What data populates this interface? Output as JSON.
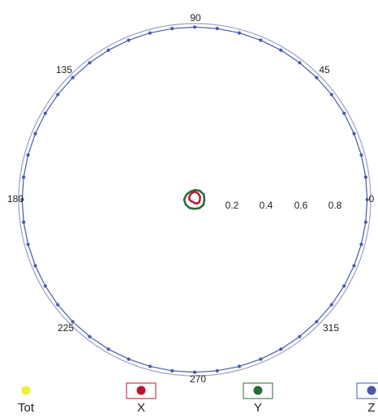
{
  "chart_data": {
    "type": "polar",
    "angle_ticks": [
      "0",
      "45",
      "90",
      "135",
      "180",
      "225",
      "270",
      "315"
    ],
    "radial_ticks": [
      "0.2",
      "0.4",
      "0.6",
      "0.8"
    ],
    "radial_range": [
      0,
      1
    ],
    "grid": false,
    "series": [
      {
        "name": "Tot",
        "color": "#f0f032",
        "outer_dot_count": 0,
        "values": []
      },
      {
        "name": "X",
        "color": "#c01030",
        "values": [
          0.03,
          0.035,
          0.04,
          0.045,
          0.04,
          0.035,
          0.03,
          0.02,
          0.015,
          0.02,
          0.025,
          0.03
        ]
      },
      {
        "name": "Y",
        "color": "#2d6a3a",
        "values": [
          0.055,
          0.06,
          0.058,
          0.055,
          0.052,
          0.055,
          0.06,
          0.058,
          0.055,
          0.052,
          0.055,
          0.058
        ]
      },
      {
        "name": "Z",
        "color": "#4a5aa8",
        "values": [
          0.98,
          0.98,
          0.98,
          0.98,
          0.98,
          0.98,
          0.98,
          0.98,
          0.98,
          0.98,
          0.98,
          0.98,
          0.98,
          0.98,
          0.98,
          0.98,
          0.98,
          0.98,
          0.98,
          0.98,
          0.98,
          0.98,
          0.98,
          0.98,
          0.98,
          0.98,
          0.98,
          0.98,
          0.98,
          0.98,
          0.98,
          0.98,
          0.98,
          0.98,
          0.98,
          0.98,
          0.98,
          0.98,
          0.98,
          0.98,
          0.98,
          0.98,
          0.98,
          0.98,
          0.98,
          0.98,
          0.98,
          0.98
        ]
      }
    ],
    "legend_position": "bottom"
  }
}
